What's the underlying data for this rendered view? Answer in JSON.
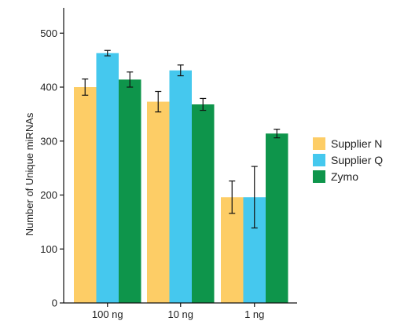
{
  "chart_data": {
    "type": "bar",
    "title": "",
    "xlabel": "",
    "ylabel": "Number of Unique miRNAs",
    "ylim": [
      0,
      550
    ],
    "yticks": [
      0,
      100,
      200,
      300,
      400,
      500
    ],
    "categories": [
      "100 ng",
      "10 ng",
      "1 ng"
    ],
    "series": [
      {
        "name": "Supplier N",
        "color": "#FDCD66",
        "values": [
          400,
          373,
          196
        ],
        "errors": [
          15,
          19,
          30
        ]
      },
      {
        "name": "Supplier Q",
        "color": "#45C8EE",
        "values": [
          463,
          431,
          196
        ],
        "errors": [
          5,
          10,
          57
        ]
      },
      {
        "name": "Zymo",
        "color": "#0E954B",
        "values": [
          414,
          368,
          314
        ],
        "errors": [
          14,
          11,
          8
        ]
      }
    ],
    "grid": false,
    "legend_position": "right",
    "error_bars": true
  }
}
